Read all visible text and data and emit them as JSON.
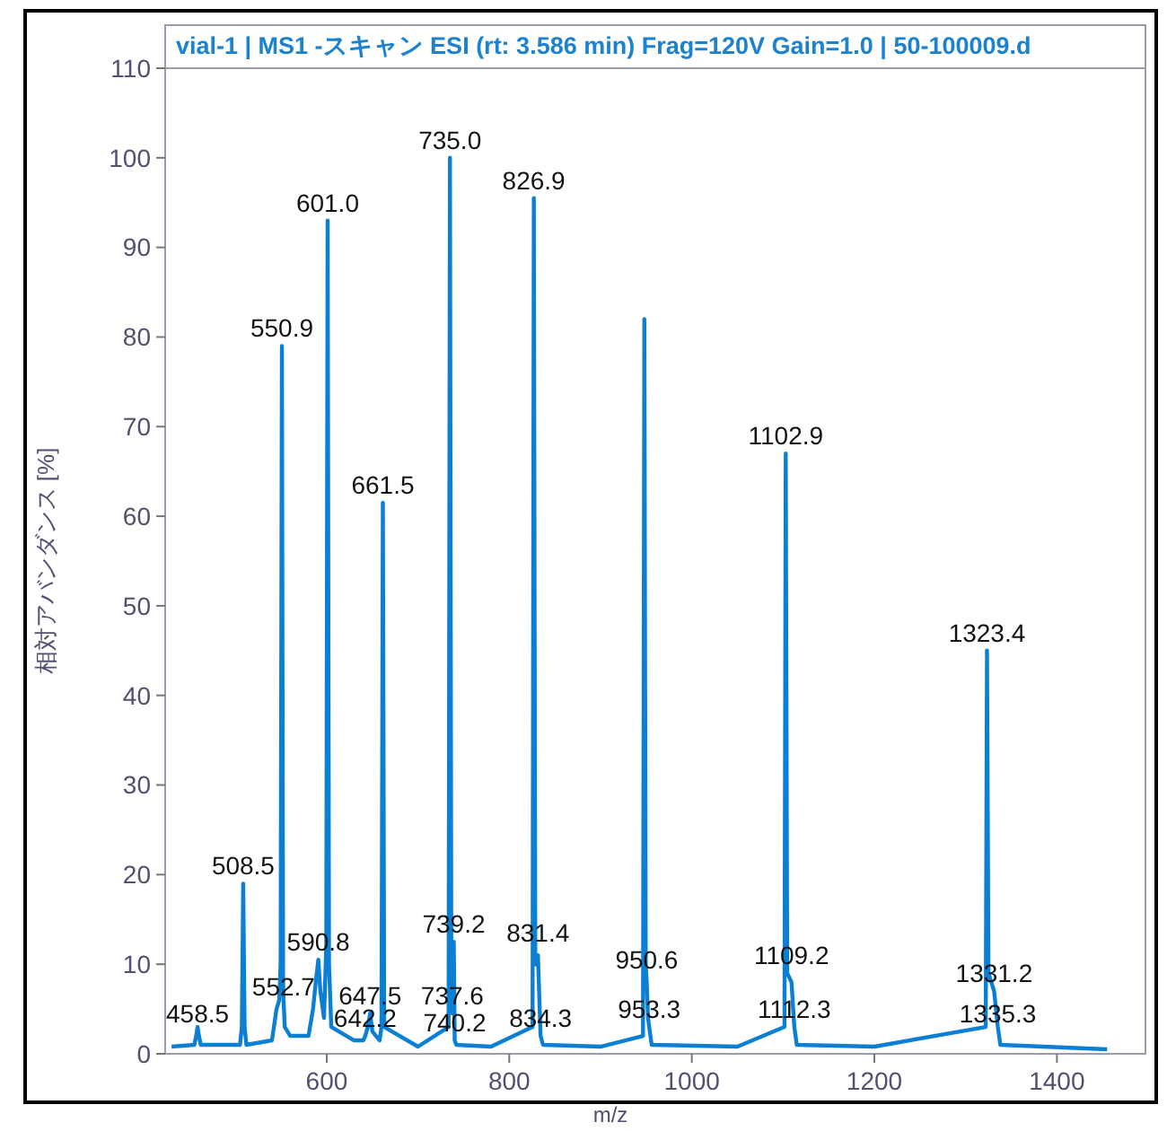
{
  "chart_data": {
    "type": "line",
    "title": "vial-1 | MS1 -スキャン ESI (rt: 3.586 min) Frag=120V Gain=1.0 | 50-100009.d",
    "xlabel": "m/z",
    "ylabel": "相対アバンダンス [%]",
    "x": [
      430,
      455,
      457,
      458.5,
      460,
      462,
      505,
      507,
      508.5,
      510,
      512,
      540,
      545,
      548,
      549.5,
      550.9,
      552.2,
      552.7,
      554,
      560,
      580,
      585,
      588,
      590.8,
      593,
      597,
      599.5,
      601,
      602.5,
      605,
      630,
      640,
      642.2,
      645,
      647.5,
      650,
      658,
      660,
      661.5,
      663,
      700,
      733.5,
      735,
      736.5,
      737.6,
      739.2,
      740.2,
      742,
      780,
      825.5,
      826.9,
      828.5,
      831.4,
      834.3,
      837,
      900,
      946.5,
      948,
      949.5,
      950.6,
      952,
      953.3,
      956,
      1050,
      1101.5,
      1102.9,
      1104.5,
      1109.2,
      1112.3,
      1115,
      1200,
      1322,
      1323.4,
      1325,
      1331.2,
      1335.3,
      1338,
      1455
    ],
    "series": [
      {
        "color": "#0a7fd4",
        "values": [
          0.8,
          1,
          2,
          3,
          2,
          1,
          1,
          3,
          19,
          3,
          1,
          1.5,
          5,
          6,
          10,
          79,
          8,
          6,
          3,
          2,
          2,
          5,
          8,
          10.5,
          7,
          4,
          12,
          93,
          10,
          3,
          1.5,
          1.5,
          2,
          3,
          4.5,
          2.5,
          1.5,
          3,
          61.5,
          3,
          0.8,
          3,
          100,
          10,
          4.5,
          12.5,
          1.5,
          1,
          0.8,
          3,
          95.5,
          10,
          11,
          2,
          1,
          0.8,
          2,
          82,
          10,
          8,
          4,
          3,
          1,
          0.8,
          3,
          67,
          9,
          8,
          3,
          1,
          0.8,
          3,
          45,
          9,
          7,
          3,
          1,
          0.5
        ]
      }
    ],
    "annotations": [
      {
        "text": "458.5",
        "x": 458.5,
        "y": 2.5
      },
      {
        "text": "508.5",
        "x": 508.5,
        "y": 19
      },
      {
        "text": "550.9",
        "x": 550.9,
        "y": 79
      },
      {
        "text": "552.7",
        "x": 552.7,
        "y": 5.5
      },
      {
        "text": "590.8",
        "x": 590.8,
        "y": 10.5
      },
      {
        "text": "601.0",
        "x": 601,
        "y": 93
      },
      {
        "text": "642.2",
        "x": 642.2,
        "y": 2
      },
      {
        "text": "647.5",
        "x": 647.5,
        "y": 4.5
      },
      {
        "text": "661.5",
        "x": 661.5,
        "y": 61.5
      },
      {
        "text": "735.0",
        "x": 735,
        "y": 100
      },
      {
        "text": "737.6",
        "x": 737.6,
        "y": 4.5
      },
      {
        "text": "739.2",
        "x": 739.2,
        "y": 12.5
      },
      {
        "text": "740.2",
        "x": 740.2,
        "y": 1.5
      },
      {
        "text": "826.9",
        "x": 826.9,
        "y": 95.5
      },
      {
        "text": "831.4",
        "x": 831.4,
        "y": 11.5
      },
      {
        "text": "834.3",
        "x": 834.3,
        "y": 2
      },
      {
        "text": "950.6",
        "x": 950.6,
        "y": 8.5
      },
      {
        "text": "953.3",
        "x": 953.3,
        "y": 3
      },
      {
        "text": "1102.9",
        "x": 1102.9,
        "y": 67
      },
      {
        "text": "1109.2",
        "x": 1109.2,
        "y": 9
      },
      {
        "text": "1112.3",
        "x": 1112.3,
        "y": 3
      },
      {
        "text": "1323.4",
        "x": 1323.4,
        "y": 45
      },
      {
        "text": "1331.2",
        "x": 1331.2,
        "y": 7
      },
      {
        "text": "1335.3",
        "x": 1335.3,
        "y": 2.5
      }
    ],
    "xlim": [
      423,
      1497
    ],
    "ylim": [
      0,
      110
    ],
    "xticks": [
      600,
      800,
      1000,
      1200,
      1400
    ],
    "yticks": [
      0,
      10,
      20,
      30,
      40,
      50,
      60,
      70,
      80,
      90,
      100,
      110
    ],
    "marker": "none",
    "line_style": "solid"
  }
}
